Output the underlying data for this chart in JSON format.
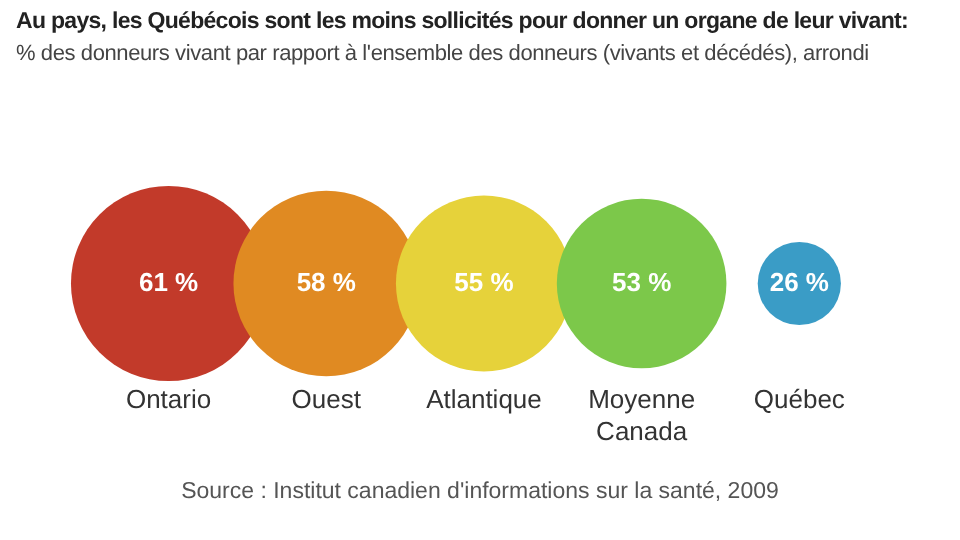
{
  "chart_data": {
    "type": "other",
    "title": "Au pays, les Québécois sont les moins sollicités pour donner un organe de leur vivant:",
    "subtitle": "% des donneurs vivant par rapport à l'ensemble des donneurs (vivants et décédés), arrondi",
    "categories": [
      "Ontario",
      "Ouest",
      "Atlantique",
      "Moyenne Canada",
      "Québec"
    ],
    "values": [
      61,
      58,
      55,
      53,
      26
    ],
    "value_labels": [
      "61 %",
      "58 %",
      "55 %",
      "53 %",
      "26 %"
    ],
    "colors": [
      "#c23a2a",
      "#e08a22",
      "#e6d23a",
      "#7cc84a",
      "#3a9cc6"
    ],
    "annotations": [
      "Source : Institut canadien d'informations sur la santé, 2009"
    ]
  }
}
